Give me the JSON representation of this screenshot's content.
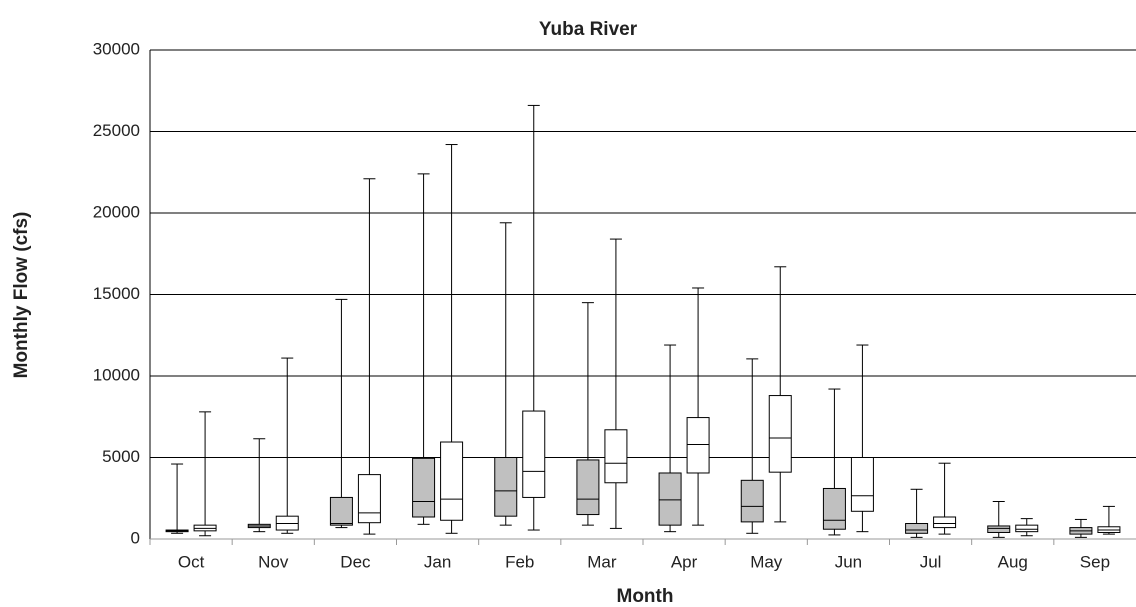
{
  "chart_data": {
    "type": "box",
    "title": "Yuba River",
    "x_label": "Month",
    "y_label": "Monthly Flow (cfs)",
    "categories": [
      "Oct",
      "Nov",
      "Dec",
      "Jan",
      "Feb",
      "Mar",
      "Apr",
      "May",
      "Jun",
      "Jul",
      "Aug",
      "Sep"
    ],
    "series": [
      {
        "color": "#c0c0c0",
        "min": [
          350,
          450,
          700,
          900,
          850,
          850,
          450,
          350,
          250,
          100,
          100,
          100
        ],
        "q1": [
          450,
          700,
          850,
          1350,
          1400,
          1500,
          850,
          1050,
          600,
          350,
          400,
          300
        ],
        "median": [
          500,
          800,
          950,
          2300,
          2950,
          2450,
          2400,
          2000,
          1150,
          550,
          650,
          500
        ],
        "q3": [
          550,
          900,
          2550,
          4950,
          5000,
          4850,
          4050,
          3600,
          3100,
          950,
          800,
          700
        ],
        "max": [
          4600,
          6150,
          14700,
          22400,
          19400,
          14500,
          11900,
          11050,
          9200,
          3050,
          2300,
          1200
        ]
      },
      {
        "color": "#ffffff",
        "min": [
          200,
          350,
          300,
          350,
          550,
          650,
          850,
          1050,
          450,
          300,
          200,
          300
        ],
        "q1": [
          500,
          550,
          1000,
          1150,
          2550,
          3450,
          4050,
          4100,
          1700,
          700,
          450,
          400
        ],
        "median": [
          650,
          950,
          1600,
          2450,
          4150,
          4650,
          5800,
          6200,
          2650,
          950,
          600,
          550
        ],
        "q3": [
          850,
          1400,
          3950,
          5950,
          7850,
          6700,
          7450,
          8800,
          5000,
          1350,
          850,
          750
        ],
        "max": [
          7800,
          11100,
          22100,
          24200,
          26600,
          18400,
          15400,
          16700,
          11900,
          4650,
          1250,
          2000
        ]
      }
    ],
    "ylim": [
      0,
      30000
    ],
    "yticks": [
      0,
      5000,
      10000,
      15000,
      20000,
      25000,
      30000
    ],
    "grid": true
  }
}
